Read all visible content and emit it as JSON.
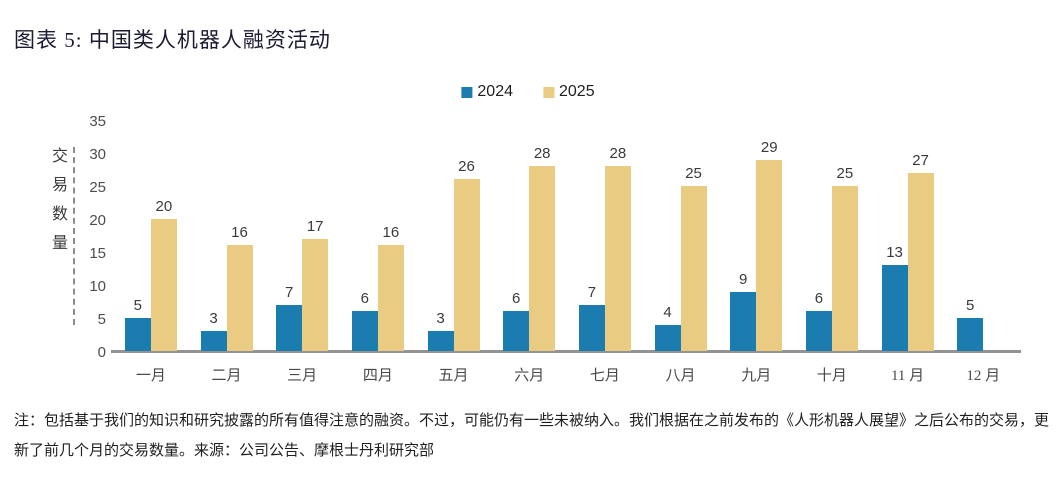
{
  "page": {
    "title": "图表 5: 中国类人机器人融资活动",
    "note": "注：包括基于我们的知识和研究披露的所有值得注意的融资。不过，可能仍有一些未被纳入。我们根据在之前发布的《人形机器人展望》之后公布的交易，更新了前几个月的交易数量。来源：公司公告、摩根士丹利研究部"
  },
  "colors": {
    "series_2024": "#1B7CB0",
    "series_2025": "#E9CC82",
    "axis_line": "#939393",
    "title_text": "#1b1b33",
    "tick_text": "#4d4d4d",
    "value_label_text": "#3a3a3a"
  },
  "chart_data": {
    "type": "bar",
    "title": "图表 5: 中国类人机器人融资活动",
    "xlabel": "",
    "ylabel": "交易数量",
    "categories": [
      "一月",
      "二月",
      "三月",
      "四月",
      "五月",
      "六月",
      "七月",
      "八月",
      "九月",
      "十月",
      "11 月",
      "12 月"
    ],
    "series": [
      {
        "name": "2024",
        "color": "#1B7CB0",
        "values": [
          5,
          3,
          7,
          6,
          3,
          6,
          7,
          4,
          9,
          6,
          13,
          5
        ]
      },
      {
        "name": "2025",
        "color": "#E9CC82",
        "values": [
          20,
          16,
          17,
          16,
          26,
          28,
          28,
          25,
          29,
          25,
          27,
          null
        ]
      }
    ],
    "ylim": [
      0,
      35
    ],
    "yticks": [
      0,
      5,
      10,
      15,
      20,
      25,
      30,
      35
    ],
    "grid": false,
    "legend_position": "top-center",
    "value_labels": true
  }
}
